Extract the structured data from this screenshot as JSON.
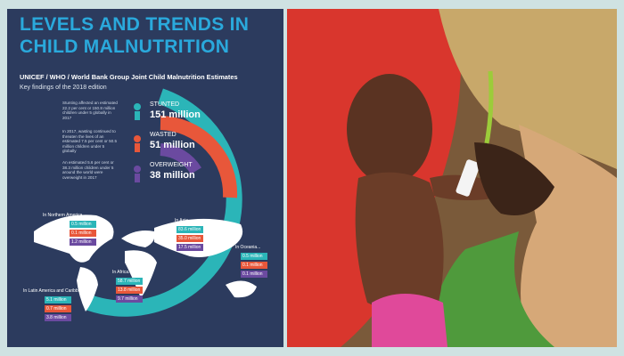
{
  "header": {
    "title_line1": "LEVELS AND TRENDS IN",
    "title_line2": "CHILD MALNUTRITION",
    "subtitle": "UNICEF / WHO / World Bank Group Joint Child Malnutrition Estimates",
    "edition": "Key findings of the 2018 edition"
  },
  "global": [
    {
      "note": "Stunting affected an estimated 22.2 per cent or 150.8 million children under 5 globally in 2017",
      "label": "STUNTED",
      "value": "151 million"
    },
    {
      "note": "In 2017, wasting continued to threaten the lives of an estimated 7.5 per cent or 50.5 million children under 5 globally",
      "label": "WASTED",
      "value": "51 million"
    },
    {
      "note": "An estimated 5.6 per cent or 38.3 million children under 5 around the world were overweight in 2017",
      "label": "OVERWEIGHT",
      "value": "38 million"
    }
  ],
  "regions": [
    {
      "name": "In Northern America...",
      "values": [
        "0.5 million",
        "0.1 million",
        "1.2 million"
      ]
    },
    {
      "name": "In Asia...",
      "values": [
        "83.6 million",
        "35.0 million",
        "17.5 million"
      ]
    },
    {
      "name": "In Oceania...",
      "values": [
        "0.5 million",
        "0.1 million",
        "0.1 million"
      ]
    },
    {
      "name": "In Africa...",
      "values": [
        "58.7 million",
        "13.8 million",
        "9.7 million"
      ]
    },
    {
      "name": "In Latin America and Caribbean...",
      "values": [
        "5.1 million",
        "0.7 million",
        "3.8 million"
      ]
    }
  ]
}
